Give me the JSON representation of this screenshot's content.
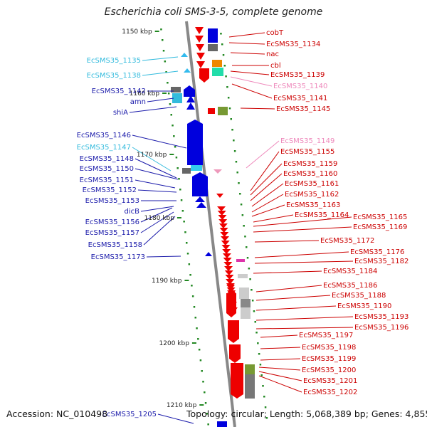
{
  "title": "Escherichia coli SMS-3-5, complete genome",
  "footer": {
    "accession": "Accession: NC_010498",
    "topology": "Topology: circular; Length: 5,068,389 bp; Genes: 4,855"
  },
  "colors": {
    "forward": "#0000dd",
    "reverse": "#ee0000",
    "left_label": "#1a1aaa",
    "left_label_light": "#33bbdd",
    "right_label": "#cc0000",
    "right_label_light": "#ee88bb",
    "backbone": "#888888",
    "tick": "#228822"
  },
  "ticks": [
    {
      "label": "1150 kbp"
    },
    {
      "label": "1160 kbp"
    },
    {
      "label": "1170 kbp"
    },
    {
      "label": "1180 kbp"
    },
    {
      "label": "1190 kbp"
    },
    {
      "label": "1200 kbp"
    },
    {
      "label": "1210 kbp"
    }
  ],
  "left_labels": [
    {
      "text": "EcSMS35_1135",
      "light": true
    },
    {
      "text": "EcSMS35_1138",
      "light": true
    },
    {
      "text": "EcSMS35_1142",
      "light": false
    },
    {
      "text": "amn",
      "light": false
    },
    {
      "text": "shiA",
      "light": false
    },
    {
      "text": "EcSMS35_1146",
      "light": false
    },
    {
      "text": "EcSMS35_1147",
      "light": true
    },
    {
      "text": "EcSMS35_1148",
      "light": false
    },
    {
      "text": "EcSMS35_1150",
      "light": false
    },
    {
      "text": "EcSMS35_1151",
      "light": false
    },
    {
      "text": "EcSMS35_1152",
      "light": false
    },
    {
      "text": "EcSMS35_1153",
      "light": false
    },
    {
      "text": "dicB",
      "light": false
    },
    {
      "text": "EcSMS35_1156",
      "light": false
    },
    {
      "text": "EcSMS35_1157",
      "light": false
    },
    {
      "text": "EcSMS35_1158",
      "light": false
    },
    {
      "text": "EcSMS35_1173",
      "light": false
    },
    {
      "text": "EcSMS35_1205",
      "light": false
    }
  ],
  "right_labels": [
    {
      "text": "cobT",
      "light": false
    },
    {
      "text": "EcSMS35_1134",
      "light": false
    },
    {
      "text": "nac",
      "light": false
    },
    {
      "text": "cbl",
      "light": false
    },
    {
      "text": "EcSMS35_1139",
      "light": false
    },
    {
      "text": "EcSMS35_1140",
      "light": true
    },
    {
      "text": "EcSMS35_1141",
      "light": false
    },
    {
      "text": "EcSMS35_1145",
      "light": false
    },
    {
      "text": "EcSMS35_1149",
      "light": true
    },
    {
      "text": "EcSMS35_1155",
      "light": false
    },
    {
      "text": "EcSMS35_1159",
      "light": false
    },
    {
      "text": "EcSMS35_1160",
      "light": false
    },
    {
      "text": "EcSMS35_1161",
      "light": false
    },
    {
      "text": "EcSMS35_1162",
      "light": false
    },
    {
      "text": "EcSMS35_1163",
      "light": false
    },
    {
      "text": "EcSMS35_1164",
      "light": false
    },
    {
      "text": "EcSMS35_1165",
      "light": false
    },
    {
      "text": "EcSMS35_1169",
      "light": false
    },
    {
      "text": "EcSMS35_1172",
      "light": false
    },
    {
      "text": "EcSMS35_1176",
      "light": false
    },
    {
      "text": "EcSMS35_1182",
      "light": false
    },
    {
      "text": "EcSMS35_1184",
      "light": false
    },
    {
      "text": "EcSMS35_1186",
      "light": false
    },
    {
      "text": "EcSMS35_1188",
      "light": false
    },
    {
      "text": "EcSMS35_1190",
      "light": false
    },
    {
      "text": "EcSMS35_1193",
      "light": false
    },
    {
      "text": "EcSMS35_1196",
      "light": false
    },
    {
      "text": "EcSMS35_1197",
      "light": false
    },
    {
      "text": "EcSMS35_1198",
      "light": false
    },
    {
      "text": "EcSMS35_1199",
      "light": false
    },
    {
      "text": "EcSMS35_1200",
      "light": false
    },
    {
      "text": "EcSMS35_1201",
      "light": false
    },
    {
      "text": "EcSMS35_1202",
      "light": false
    }
  ]
}
